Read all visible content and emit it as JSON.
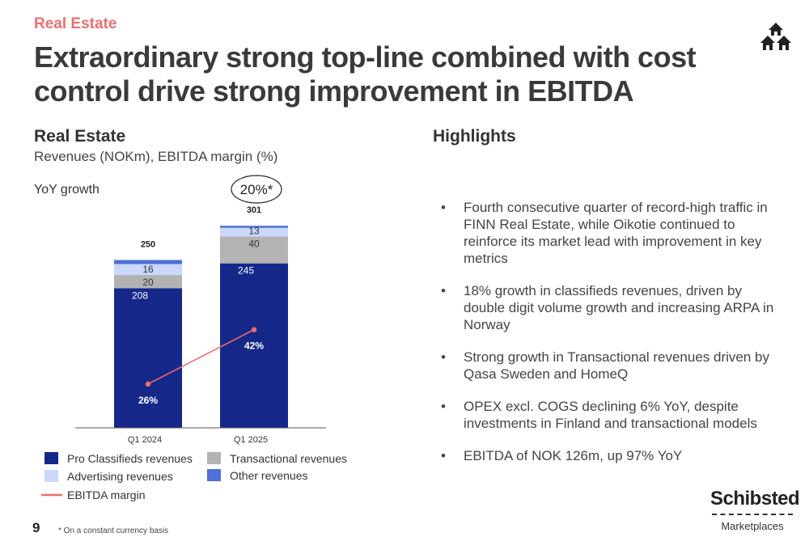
{
  "section_tag": "Real Estate",
  "title": "Extraordinary strong top-line combined with cost control drive strong improvement in EBITDA",
  "chart_panel": {
    "title": "Real Estate",
    "subtitle": "Revenues (NOKm), EBITDA margin (%)",
    "yoy_label": "YoY growth",
    "yoy_value": "20%*"
  },
  "highlights": {
    "title": "Highlights",
    "bullet": "•",
    "items": [
      "Fourth consecutive quarter of record-high traffic in FINN Real Estate, while Oikotie continued to reinforce its market lead with improvement in key metrics",
      "18% growth in classifieds revenues, driven by double digit volume growth and increasing ARPA in Norway",
      "Strong growth in Transactional revenues driven by Qasa Sweden and HomeQ",
      "OPEX excl. COGS declining 6% YoY, despite investments in Finland and transactional models",
      "EBITDA of NOK 126m, up 97% YoY"
    ]
  },
  "chart_data": {
    "type": "bar",
    "stacked": true,
    "categories": [
      "Q1 2024",
      "Q1 2025"
    ],
    "series": [
      {
        "name": "Pro Classifieds revenues",
        "values": [
          208,
          245
        ],
        "color": "#15288a",
        "label_color": "#ffffff",
        "labels": [
          "208",
          "245"
        ]
      },
      {
        "name": "Transactional revenues",
        "values": [
          20,
          40
        ],
        "color": "#b3b3b3",
        "label_color": "#333333",
        "labels": [
          "20",
          "40"
        ]
      },
      {
        "name": "Advertising revenues",
        "values": [
          16,
          13
        ],
        "color": "#c9d8fb",
        "label_color": "#333333",
        "labels": [
          "16",
          "13"
        ]
      },
      {
        "name": "Other  revenues",
        "values": [
          6,
          3
        ],
        "color": "#4f6fd9",
        "label_color": "#ffffff",
        "labels": [
          "",
          ""
        ]
      }
    ],
    "totals": [
      "250",
      "301"
    ],
    "line": {
      "name": "EBITDA margin",
      "values": [
        26,
        42
      ],
      "labels": [
        "26%",
        "42%"
      ],
      "color": "#f06b6b"
    },
    "legend_order": [
      "Pro Classifieds revenues",
      "Advertising revenues",
      "EBITDA margin",
      "Transactional revenues",
      "Other  revenues"
    ],
    "legend_placement": "bottom",
    "grid": false
  },
  "footer": {
    "page_number": "9",
    "footnote": "* On a constant currency basis",
    "brand_name": "Schibsted",
    "brand_sub": "Marketplaces"
  },
  "icon": "houses-icon"
}
